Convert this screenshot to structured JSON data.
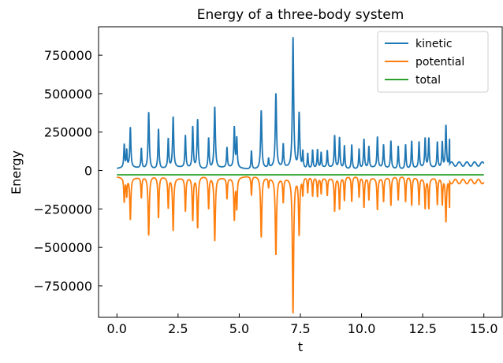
{
  "chart_data": {
    "type": "line",
    "title": "Energy of a three-body system",
    "xlabel": "t",
    "ylabel": "Energy",
    "xlim": [
      -0.75,
      15.75
    ],
    "ylim": [
      -955000,
      935000
    ],
    "xticks": [
      0.0,
      2.5,
      5.0,
      7.5,
      10.0,
      12.5,
      15.0
    ],
    "xtick_labels": [
      "0.0",
      "2.5",
      "5.0",
      "7.5",
      "10.0",
      "12.5",
      "15.0"
    ],
    "yticks": [
      -750000,
      -500000,
      -250000,
      0,
      250000,
      500000,
      750000
    ],
    "ytick_labels": [
      "−750000",
      "−500000",
      "−250000",
      "0",
      "250000",
      "500000",
      "750000"
    ],
    "grid": false,
    "legend_position": "top-right",
    "total_energy": -28000,
    "series": [
      {
        "name": "kinetic",
        "color": "#1f77b4"
      },
      {
        "name": "potential",
        "color": "#ff7f0e"
      },
      {
        "name": "total",
        "color": "#2ca02c"
      }
    ],
    "kinetic_peaks": [
      [
        0.3,
        150000
      ],
      [
        0.4,
        110000
      ],
      [
        0.55,
        260000
      ],
      [
        1.0,
        130000
      ],
      [
        1.3,
        370000
      ],
      [
        1.7,
        260000
      ],
      [
        2.1,
        190000
      ],
      [
        2.3,
        330000
      ],
      [
        2.8,
        210000
      ],
      [
        3.1,
        270000
      ],
      [
        3.3,
        320000
      ],
      [
        3.75,
        200000
      ],
      [
        4.0,
        400000
      ],
      [
        4.5,
        130000
      ],
      [
        4.8,
        260000
      ],
      [
        4.9,
        190000
      ],
      [
        5.5,
        120000
      ],
      [
        5.9,
        380000
      ],
      [
        6.2,
        60000
      ],
      [
        6.5,
        480000
      ],
      [
        6.8,
        150000
      ],
      [
        7.2,
        850000
      ],
      [
        7.45,
        360000
      ],
      [
        7.6,
        110000
      ],
      [
        7.8,
        100000
      ],
      [
        8.0,
        120000
      ],
      [
        8.2,
        120000
      ],
      [
        8.35,
        100000
      ],
      [
        8.6,
        110000
      ],
      [
        8.9,
        210000
      ],
      [
        9.1,
        200000
      ],
      [
        9.3,
        150000
      ],
      [
        9.6,
        160000
      ],
      [
        9.9,
        130000
      ],
      [
        10.1,
        190000
      ],
      [
        10.3,
        140000
      ],
      [
        10.65,
        200000
      ],
      [
        10.9,
        150000
      ],
      [
        11.2,
        180000
      ],
      [
        11.5,
        150000
      ],
      [
        11.8,
        160000
      ],
      [
        12.05,
        180000
      ],
      [
        12.35,
        170000
      ],
      [
        12.6,
        190000
      ],
      [
        12.75,
        190000
      ],
      [
        13.1,
        170000
      ],
      [
        13.3,
        170000
      ],
      [
        13.45,
        280000
      ],
      [
        13.6,
        190000
      ]
    ],
    "kinetic_tail_amplitude": 40000
  }
}
